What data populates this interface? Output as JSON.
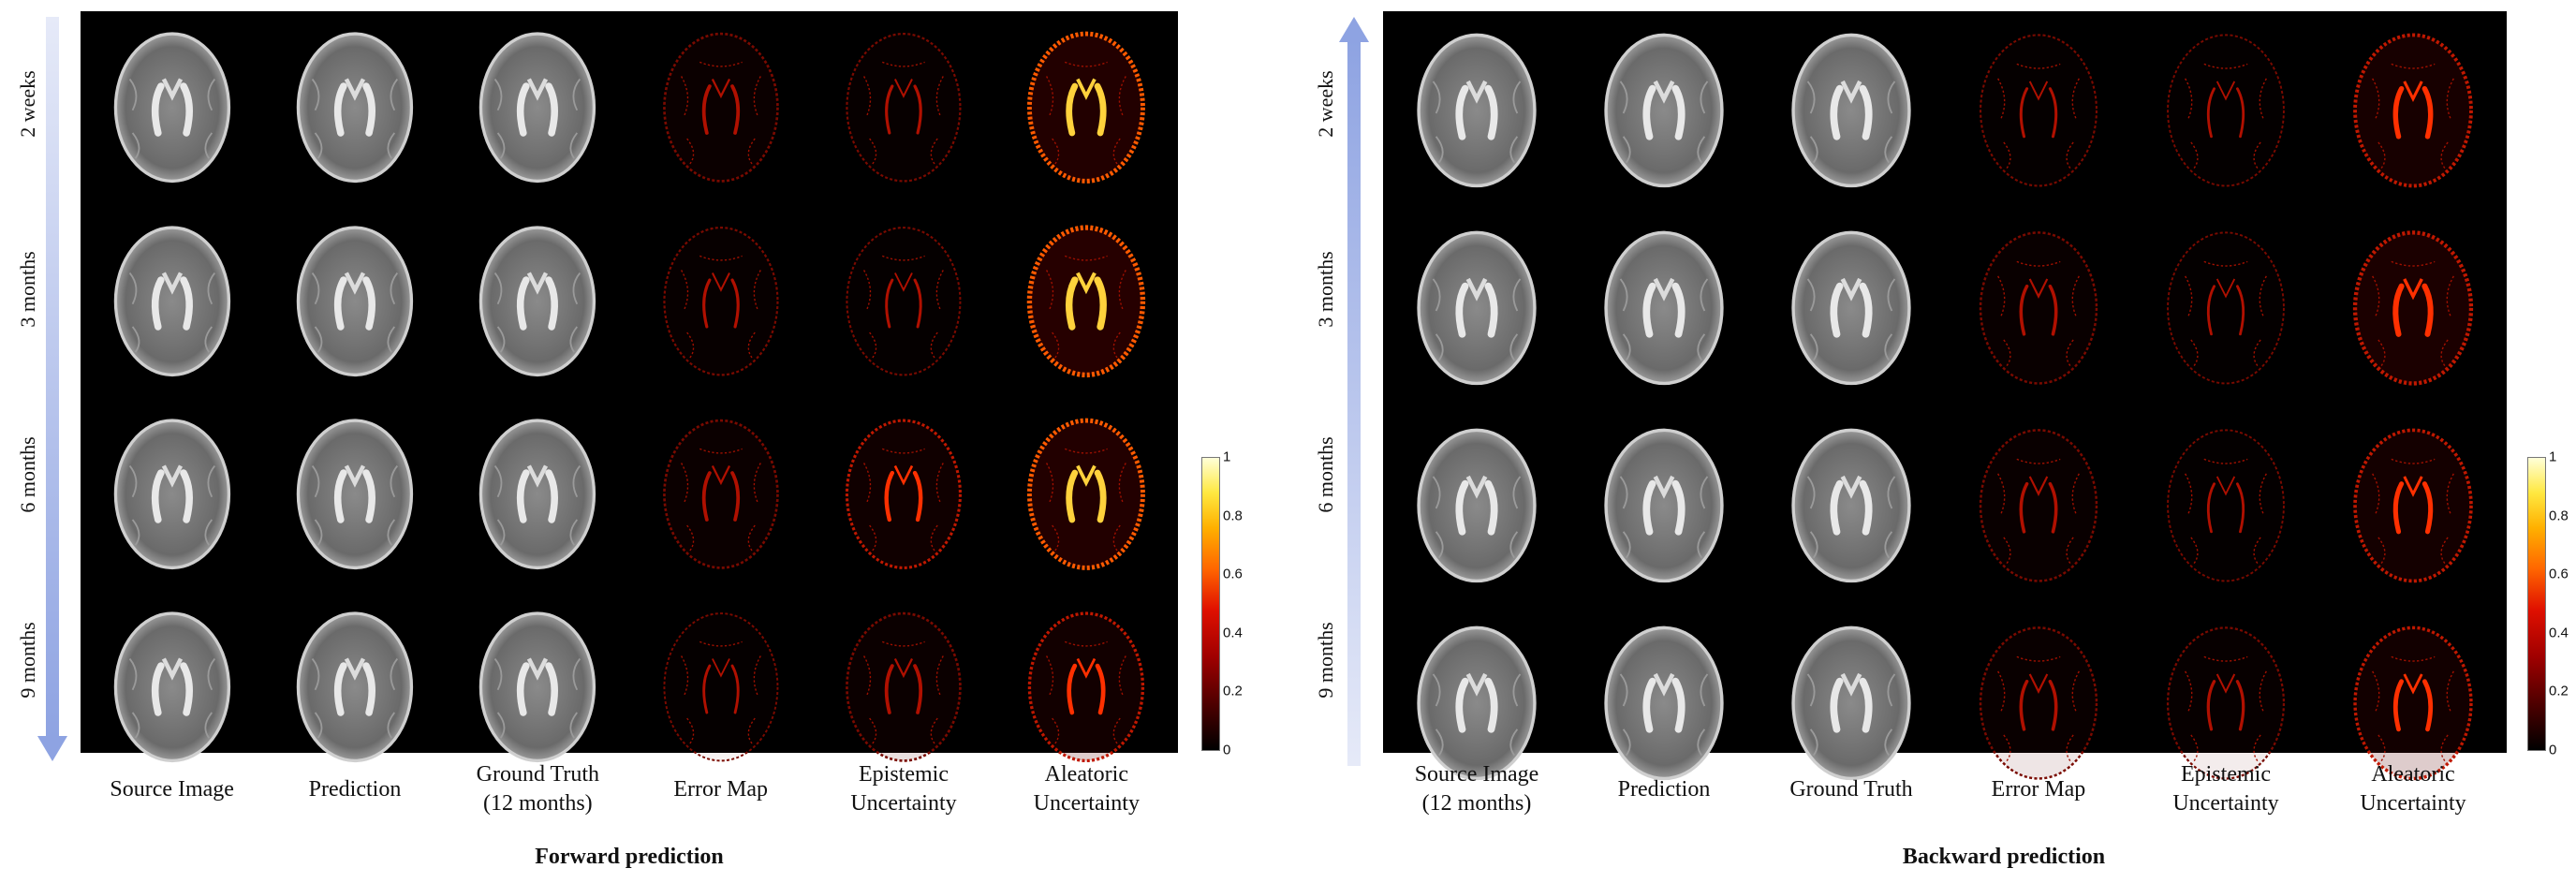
{
  "forward": {
    "caption": "Forward prediction",
    "rows": [
      "2 weeks",
      "3 months",
      "6 months",
      "9 months"
    ],
    "columns": [
      "Source Image",
      "Prediction",
      "Ground Truth\n(12 months)",
      "Error Map",
      "Epistemic\nUncertainty",
      "Aleatoric\nUncertainty"
    ],
    "arrow_direction": "down",
    "cell_types": [
      "mri",
      "mri",
      "mri",
      "heat",
      "heat",
      "heat"
    ],
    "heat_levels": [
      [
        0.25,
        0.15,
        0.75
      ],
      [
        0.15,
        0.12,
        0.85
      ],
      [
        0.25,
        0.35,
        0.75
      ],
      [
        0.1,
        0.25,
        0.4
      ]
    ]
  },
  "backward": {
    "caption": "Backward prediction",
    "rows": [
      "2 weeks",
      "3 months",
      "6 months",
      "9 months"
    ],
    "columns": [
      "Source Image\n(12 months)",
      "Prediction",
      "Ground Truth",
      "Error Map",
      "Epistemic\nUncertainty",
      "Aleatoric\nUncertainty"
    ],
    "arrow_direction": "up",
    "cell_types": [
      "mri",
      "mri",
      "mri",
      "heat",
      "heat",
      "heat"
    ],
    "heat_levels": [
      [
        0.12,
        0.08,
        0.5
      ],
      [
        0.2,
        0.08,
        0.6
      ],
      [
        0.2,
        0.08,
        0.45
      ],
      [
        0.2,
        0.15,
        0.4
      ]
    ]
  },
  "colorbar": {
    "ticks": [
      "0",
      "0.2",
      "0.4",
      "0.6",
      "0.8",
      "1"
    ],
    "colormap": "hot"
  },
  "colors": {
    "arrow_light": "#dde3f6",
    "arrow_dark": "#8aa0e0",
    "background": "#000000"
  }
}
